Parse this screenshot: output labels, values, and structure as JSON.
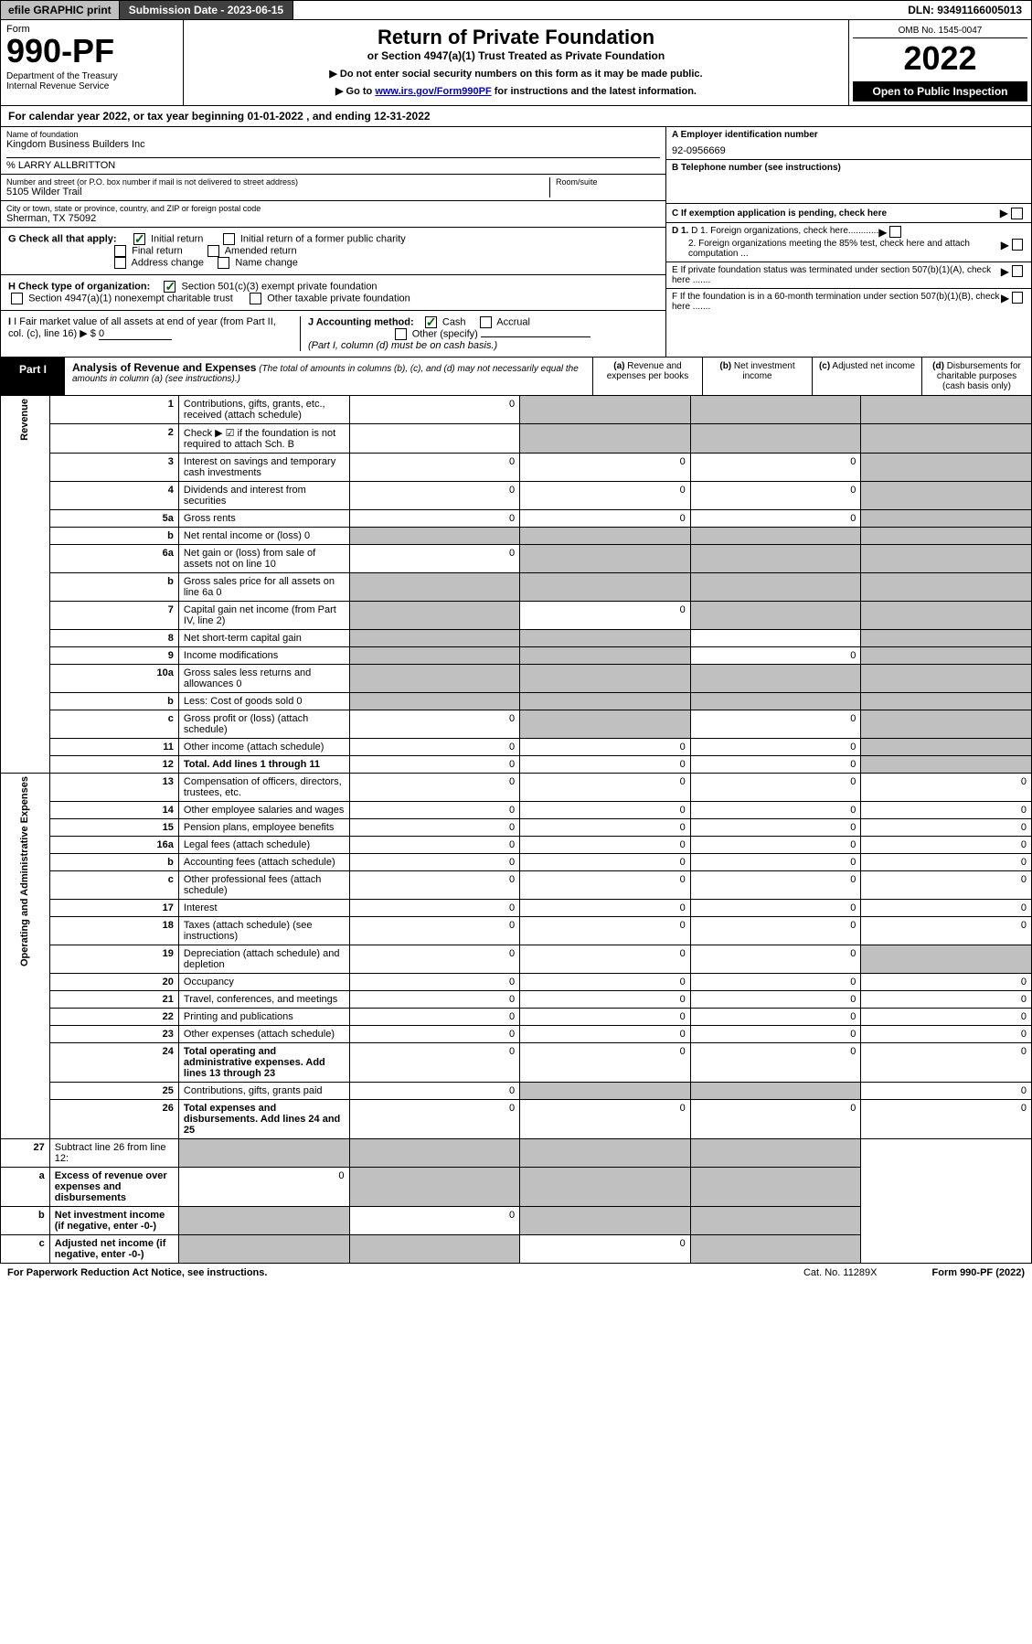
{
  "colors": {
    "black": "#000000",
    "white": "#ffffff",
    "grey_bg": "#c0c0c0",
    "dark_grey": "#404040",
    "link": "#0000cc",
    "check_green": "#006000"
  },
  "topbar": {
    "efile": "efile GRAPHIC print",
    "submission": "Submission Date - 2023-06-15",
    "dln": "DLN: 93491166005013"
  },
  "header": {
    "form_label": "Form",
    "form_num": "990-PF",
    "dept": "Department of the Treasury\nInternal Revenue Service",
    "title": "Return of Private Foundation",
    "subtitle": "or Section 4947(a)(1) Trust Treated as Private Foundation",
    "note1": "▶ Do not enter social security numbers on this form as it may be made public.",
    "note2_pre": "▶ Go to ",
    "note2_link": "www.irs.gov/Form990PF",
    "note2_post": " for instructions and the latest information.",
    "omb": "OMB No. 1545-0047",
    "year": "2022",
    "inspection": "Open to Public Inspection"
  },
  "cal_year": "For calendar year 2022, or tax year beginning 01-01-2022                       , and ending 12-31-2022",
  "info": {
    "name_lbl": "Name of foundation",
    "name": "Kingdom Business Builders Inc",
    "care_of": "% LARRY ALLBRITTON",
    "addr_lbl": "Number and street (or P.O. box number if mail is not delivered to street address)",
    "addr": "5105 Wilder Trail",
    "room_lbl": "Room/suite",
    "city_lbl": "City or town, state or province, country, and ZIP or foreign postal code",
    "city": "Sherman, TX  75092",
    "a_lbl": "A Employer identification number",
    "a_val": "92-0956669",
    "b_lbl": "B Telephone number (see instructions)",
    "c_lbl": "C If exemption application is pending, check here",
    "d1_lbl": "D 1. Foreign organizations, check here............",
    "d2_lbl": "2. Foreign organizations meeting the 85% test, check here and attach computation ...",
    "e_lbl": "E  If private foundation status was terminated under section 507(b)(1)(A), check here .......",
    "f_lbl": "F  If the foundation is in a 60-month termination under section 507(b)(1)(B), check here ......."
  },
  "g": {
    "label": "G Check all that apply:",
    "initial": "Initial return",
    "initial_former": "Initial return of a former public charity",
    "final": "Final return",
    "amended": "Amended return",
    "addr_change": "Address change",
    "name_change": "Name change"
  },
  "h": {
    "label": "H Check type of organization:",
    "opt1": "Section 501(c)(3) exempt private foundation",
    "opt2": "Section 4947(a)(1) nonexempt charitable trust",
    "opt3": "Other taxable private foundation"
  },
  "i": {
    "label": "I Fair market value of all assets at end of year (from Part II, col. (c), line 16) ▶ $",
    "val": "0"
  },
  "j": {
    "label": "J Accounting method:",
    "cash": "Cash",
    "accrual": "Accrual",
    "other": "Other (specify)",
    "note": "(Part I, column (d) must be on cash basis.)"
  },
  "part1": {
    "label": "Part I",
    "title": "Analysis of Revenue and Expenses",
    "subtitle": "(The total of amounts in columns (b), (c), and (d) may not necessarily equal the amounts in column (a) (see instructions).)",
    "col_a": "Revenue and expenses per books",
    "col_b": "Net investment income",
    "col_c": "Adjusted net income",
    "col_d": "Disbursements for charitable purposes (cash basis only)",
    "vlabel_rev": "Revenue",
    "vlabel_exp": "Operating and Administrative Expenses"
  },
  "rows": [
    {
      "n": "1",
      "d": "Contributions, gifts, grants, etc., received (attach schedule)",
      "a": "0",
      "b": "",
      "c": "",
      "dd": "",
      "bg": true,
      "cg": true,
      "dg": true
    },
    {
      "n": "2",
      "d": "Check ▶ ☑ if the foundation is not required to attach Sch. B",
      "a": "",
      "b": "",
      "c": "",
      "dd": "",
      "ag": false,
      "bg": true,
      "cg": true,
      "dg": true,
      "nobord": true
    },
    {
      "n": "3",
      "d": "Interest on savings and temporary cash investments",
      "a": "0",
      "b": "0",
      "c": "0",
      "dd": "",
      "dg": true
    },
    {
      "n": "4",
      "d": "Dividends and interest from securities",
      "a": "0",
      "b": "0",
      "c": "0",
      "dd": "",
      "dg": true
    },
    {
      "n": "5a",
      "d": "Gross rents",
      "a": "0",
      "b": "0",
      "c": "0",
      "dd": "",
      "dg": true
    },
    {
      "n": "b",
      "d": "Net rental income or (loss)                            0",
      "a": "",
      "b": "",
      "c": "",
      "dd": "",
      "ag": true,
      "bg": true,
      "cg": true,
      "dg": true
    },
    {
      "n": "6a",
      "d": "Net gain or (loss) from sale of assets not on line 10",
      "a": "0",
      "b": "",
      "c": "",
      "dd": "",
      "bg": true,
      "cg": true,
      "dg": true
    },
    {
      "n": "b",
      "d": "Gross sales price for all assets on line 6a            0",
      "a": "",
      "b": "",
      "c": "",
      "dd": "",
      "ag": true,
      "bg": true,
      "cg": true,
      "dg": true
    },
    {
      "n": "7",
      "d": "Capital gain net income (from Part IV, line 2)",
      "a": "",
      "b": "0",
      "c": "",
      "dd": "",
      "ag": true,
      "cg": true,
      "dg": true
    },
    {
      "n": "8",
      "d": "Net short-term capital gain",
      "a": "",
      "b": "",
      "c": "",
      "dd": "",
      "ag": true,
      "bg": true,
      "cg": false,
      "dg": true
    },
    {
      "n": "9",
      "d": "Income modifications",
      "a": "",
      "b": "",
      "c": "0",
      "dd": "",
      "ag": true,
      "bg": true,
      "dg": true
    },
    {
      "n": "10a",
      "d": "Gross sales less returns and allowances        0",
      "a": "",
      "b": "",
      "c": "",
      "dd": "",
      "ag": true,
      "bg": true,
      "cg": true,
      "dg": true
    },
    {
      "n": "b",
      "d": "Less: Cost of goods sold                               0",
      "a": "",
      "b": "",
      "c": "",
      "dd": "",
      "ag": true,
      "bg": true,
      "cg": true,
      "dg": true
    },
    {
      "n": "c",
      "d": "Gross profit or (loss) (attach schedule)",
      "a": "0",
      "b": "",
      "c": "0",
      "dd": "",
      "bg": true,
      "dg": true
    },
    {
      "n": "11",
      "d": "Other income (attach schedule)",
      "a": "0",
      "b": "0",
      "c": "0",
      "dd": "",
      "dg": true
    },
    {
      "n": "12",
      "d": "Total. Add lines 1 through 11",
      "a": "0",
      "b": "0",
      "c": "0",
      "dd": "",
      "bold": true,
      "dg": true
    }
  ],
  "exp_rows": [
    {
      "n": "13",
      "d": "Compensation of officers, directors, trustees, etc.",
      "a": "0",
      "b": "0",
      "c": "0",
      "dd": "0"
    },
    {
      "n": "14",
      "d": "Other employee salaries and wages",
      "a": "0",
      "b": "0",
      "c": "0",
      "dd": "0"
    },
    {
      "n": "15",
      "d": "Pension plans, employee benefits",
      "a": "0",
      "b": "0",
      "c": "0",
      "dd": "0"
    },
    {
      "n": "16a",
      "d": "Legal fees (attach schedule)",
      "a": "0",
      "b": "0",
      "c": "0",
      "dd": "0"
    },
    {
      "n": "b",
      "d": "Accounting fees (attach schedule)",
      "a": "0",
      "b": "0",
      "c": "0",
      "dd": "0"
    },
    {
      "n": "c",
      "d": "Other professional fees (attach schedule)",
      "a": "0",
      "b": "0",
      "c": "0",
      "dd": "0"
    },
    {
      "n": "17",
      "d": "Interest",
      "a": "0",
      "b": "0",
      "c": "0",
      "dd": "0"
    },
    {
      "n": "18",
      "d": "Taxes (attach schedule) (see instructions)",
      "a": "0",
      "b": "0",
      "c": "0",
      "dd": "0"
    },
    {
      "n": "19",
      "d": "Depreciation (attach schedule) and depletion",
      "a": "0",
      "b": "0",
      "c": "0",
      "dd": "",
      "dg": true
    },
    {
      "n": "20",
      "d": "Occupancy",
      "a": "0",
      "b": "0",
      "c": "0",
      "dd": "0"
    },
    {
      "n": "21",
      "d": "Travel, conferences, and meetings",
      "a": "0",
      "b": "0",
      "c": "0",
      "dd": "0"
    },
    {
      "n": "22",
      "d": "Printing and publications",
      "a": "0",
      "b": "0",
      "c": "0",
      "dd": "0"
    },
    {
      "n": "23",
      "d": "Other expenses (attach schedule)",
      "a": "0",
      "b": "0",
      "c": "0",
      "dd": "0"
    },
    {
      "n": "24",
      "d": "Total operating and administrative expenses. Add lines 13 through 23",
      "a": "0",
      "b": "0",
      "c": "0",
      "dd": "0",
      "bold": true
    },
    {
      "n": "25",
      "d": "Contributions, gifts, grants paid",
      "a": "0",
      "b": "",
      "c": "",
      "dd": "0",
      "bg": true,
      "cg": true
    },
    {
      "n": "26",
      "d": "Total expenses and disbursements. Add lines 24 and 25",
      "a": "0",
      "b": "0",
      "c": "0",
      "dd": "0",
      "bold": true
    }
  ],
  "final_rows": [
    {
      "n": "27",
      "d": "Subtract line 26 from line 12:",
      "a": "",
      "b": "",
      "c": "",
      "dd": "",
      "ag": true,
      "bg": true,
      "cg": true,
      "dg": true,
      "bold": false
    },
    {
      "n": "a",
      "d": "Excess of revenue over expenses and disbursements",
      "a": "0",
      "b": "",
      "c": "",
      "dd": "",
      "bg": true,
      "cg": true,
      "dg": true,
      "bold": true
    },
    {
      "n": "b",
      "d": "Net investment income (if negative, enter -0-)",
      "a": "",
      "b": "0",
      "c": "",
      "dd": "",
      "ag": true,
      "cg": true,
      "dg": true,
      "bold": true
    },
    {
      "n": "c",
      "d": "Adjusted net income (if negative, enter -0-)",
      "a": "",
      "b": "",
      "c": "0",
      "dd": "",
      "ag": true,
      "bg": true,
      "dg": true,
      "bold": true
    }
  ],
  "footer": {
    "left": "For Paperwork Reduction Act Notice, see instructions.",
    "mid": "Cat. No. 11289X",
    "right": "Form 990-PF (2022)"
  }
}
